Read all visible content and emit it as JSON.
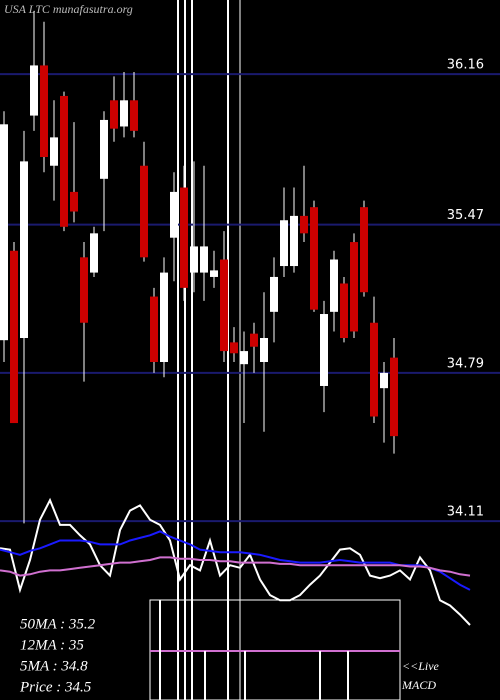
{
  "chart_data": [
    {
      "type": "candlestick",
      "title": "USA LTC munafasutra.org",
      "ylim": [
        33.29,
        36.5
      ],
      "yticks": [
        36.16,
        35.47,
        34.79,
        34.11
      ],
      "grid": true,
      "up_color": "#ffffff",
      "down_color": "#cc0000",
      "wick_color": "#ffffff",
      "grid_color": "#1a1a6e",
      "open": [
        34.94,
        35.35,
        34.95,
        35.97,
        36.2,
        35.74,
        36.06,
        35.62,
        35.32,
        35.25,
        35.68,
        36.04,
        35.92,
        36.04,
        35.74,
        35.14,
        34.84,
        35.41,
        35.64,
        35.25,
        35.25,
        35.23,
        35.31,
        34.93,
        34.83,
        34.97,
        34.84,
        35.07,
        35.28,
        35.28,
        35.51,
        35.55,
        34.73,
        35.07,
        35.2,
        35.39,
        35.55,
        35.02,
        34.72,
        34.86
      ],
      "high": [
        35.99,
        35.39,
        35.9,
        36.45,
        36.4,
        36.04,
        36.08,
        35.94,
        35.39,
        35.46,
        35.99,
        36.15,
        36.17,
        36.17,
        35.85,
        35.18,
        35.32,
        35.71,
        35.74,
        35.76,
        35.74,
        35.35,
        35.44,
        35.0,
        34.98,
        35.02,
        35.16,
        35.32,
        35.64,
        35.64,
        35.74,
        35.58,
        35.12,
        35.35,
        35.23,
        35.43,
        35.58,
        35.14,
        34.84,
        34.95
      ],
      "low": [
        34.84,
        34.56,
        34.1,
        35.9,
        35.71,
        35.58,
        35.44,
        35.48,
        34.75,
        35.23,
        35.44,
        35.85,
        35.87,
        35.87,
        35.3,
        34.79,
        34.77,
        35.21,
        35.12,
        35.16,
        35.12,
        35.18,
        34.84,
        34.84,
        34.56,
        34.79,
        34.52,
        34.93,
        35.23,
        35.25,
        35.39,
        35.07,
        34.61,
        34.98,
        34.93,
        34.95,
        35.14,
        34.56,
        34.47,
        34.42
      ],
      "close": [
        35.93,
        34.56,
        35.76,
        36.2,
        35.78,
        35.87,
        35.46,
        35.53,
        35.02,
        35.43,
        35.95,
        35.91,
        36.04,
        35.9,
        35.32,
        34.84,
        35.25,
        35.62,
        35.18,
        35.37,
        35.37,
        35.26,
        34.89,
        34.88,
        34.89,
        34.91,
        34.95,
        35.23,
        35.49,
        35.51,
        35.43,
        35.08,
        35.06,
        35.31,
        34.95,
        34.98,
        35.16,
        34.59,
        34.79,
        34.5
      ]
    },
    {
      "type": "line",
      "ylim": [
        0,
        100
      ],
      "series": [
        {
          "color": "#ffffff",
          "values": [
            59,
            58,
            27,
            50,
            81,
            96,
            77,
            77,
            69,
            62,
            46,
            38,
            73,
            88,
            92,
            81,
            77,
            65,
            35,
            46,
            42,
            65,
            38,
            46,
            44,
            54,
            35,
            23,
            19,
            19,
            23,
            31,
            38,
            48,
            58,
            59,
            54,
            38,
            36,
            38,
            42,
            35,
            52,
            42,
            19,
            15,
            8,
            0
          ]
        },
        {
          "color": "#1a1aff",
          "values": [
            58,
            56,
            54,
            57,
            59,
            62,
            65,
            65,
            65,
            64,
            62,
            62,
            62,
            65,
            67,
            69,
            72,
            68,
            65,
            62,
            58,
            57,
            56,
            56,
            56,
            55,
            54,
            52,
            50,
            49,
            48,
            48,
            48,
            49,
            50,
            49,
            48,
            48,
            48,
            48,
            46,
            46,
            46,
            44,
            41,
            36,
            31,
            27
          ]
        },
        {
          "color": "#d070d0",
          "values": [
            42,
            41,
            38,
            39,
            41,
            42,
            42,
            43,
            44,
            45,
            46,
            47,
            48,
            48,
            49,
            50,
            52,
            52,
            51,
            51,
            50,
            50,
            49,
            49,
            48,
            48,
            48,
            48,
            47,
            47,
            46,
            46,
            46,
            46,
            46,
            46,
            46,
            46,
            46,
            46,
            46,
            45,
            45,
            44,
            42,
            41,
            39,
            38
          ]
        }
      ]
    }
  ],
  "info": [
    "50MA : 35.2",
    "12MA : 35",
    "5MA : 34.8",
    "Price   : 34.5"
  ],
  "live_label": "<<Live",
  "macd_label": "MACD"
}
